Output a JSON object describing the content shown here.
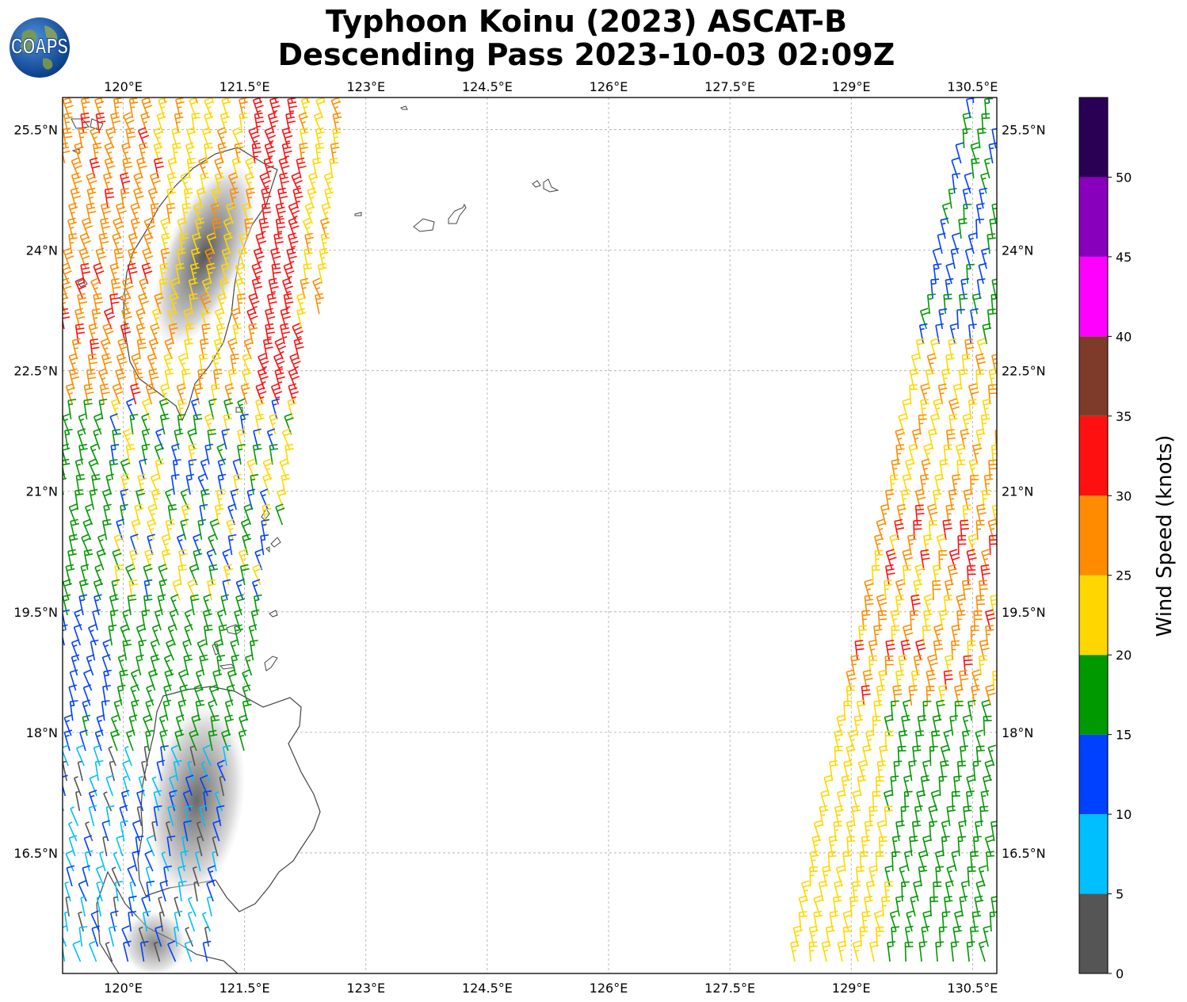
{
  "title": {
    "line1": "Typhoon Koinu (2023) ASCAT-B",
    "line2": "Descending Pass 2023-10-03 02:09Z"
  },
  "logo": {
    "text": "COAPS",
    "icon": "globe-icon"
  },
  "map": {
    "lon_range": [
      119.25,
      130.8
    ],
    "lat_range": [
      15.0,
      25.9
    ],
    "lon_ticks": [
      {
        "value": 120.0,
        "label": "120°E"
      },
      {
        "value": 121.5,
        "label": "121.5°E"
      },
      {
        "value": 123.0,
        "label": "123°E"
      },
      {
        "value": 124.5,
        "label": "124.5°E"
      },
      {
        "value": 126.0,
        "label": "126°E"
      },
      {
        "value": 127.5,
        "label": "127.5°E"
      },
      {
        "value": 129.0,
        "label": "129°E"
      },
      {
        "value": 130.5,
        "label": "130.5°E"
      }
    ],
    "lat_ticks": [
      {
        "value": 25.5,
        "label": "25.5°N"
      },
      {
        "value": 24.0,
        "label": "24°N"
      },
      {
        "value": 22.5,
        "label": "22.5°N"
      },
      {
        "value": 21.0,
        "label": "21°N"
      },
      {
        "value": 19.5,
        "label": "19.5°N"
      },
      {
        "value": 18.0,
        "label": "18°N"
      },
      {
        "value": 16.5,
        "label": "16.5°N"
      }
    ],
    "gridlines": true,
    "land_fill": "#ffffff",
    "coast_color": "#444444",
    "terrain_color": "#555555"
  },
  "colorbar": {
    "label": "Wind Speed (knots)",
    "bins": [
      {
        "min": 0,
        "max": 5,
        "color": "#555555"
      },
      {
        "min": 5,
        "max": 10,
        "color": "#00bfff"
      },
      {
        "min": 10,
        "max": 15,
        "color": "#0040ff"
      },
      {
        "min": 15,
        "max": 20,
        "color": "#009900"
      },
      {
        "min": 20,
        "max": 25,
        "color": "#ffd700"
      },
      {
        "min": 25,
        "max": 30,
        "color": "#ff8c00"
      },
      {
        "min": 30,
        "max": 35,
        "color": "#ff1010"
      },
      {
        "min": 35,
        "max": 40,
        "color": "#7f3b2a"
      },
      {
        "min": 40,
        "max": 45,
        "color": "#ff00ff"
      },
      {
        "min": 45,
        "max": 50,
        "color": "#8800bb"
      },
      {
        "min": 50,
        "max": 60,
        "color": "#2a0055"
      }
    ],
    "tick_labels": [
      "0",
      "5",
      "10",
      "15",
      "20",
      "25",
      "30",
      "35",
      "40",
      "45",
      "50"
    ]
  }
}
